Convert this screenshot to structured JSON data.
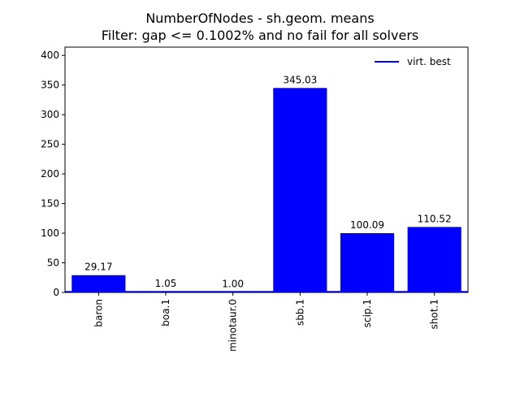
{
  "chart_data": {
    "type": "bar",
    "title": "NumberOfNodes - sh.geom. means",
    "subtitle": "Filter: gap <= 0.1002% and no fail for all solvers",
    "xlabel": "",
    "ylabel": "",
    "categories": [
      "baron",
      "boa.1",
      "minotaur.0",
      "sbb.1",
      "scip.1",
      "shot.1"
    ],
    "series": [
      {
        "values": [
          29.17,
          1.05,
          1.0,
          345.03,
          100.09,
          110.52
        ],
        "color": "#0000ff"
      }
    ],
    "data_labels": [
      "29.17",
      "1.05",
      "1.00",
      "345.03",
      "100.09",
      "110.52"
    ],
    "ylim": [
      0,
      414
    ],
    "yticks": [
      0,
      50,
      100,
      150,
      200,
      250,
      300,
      350,
      400
    ],
    "reference_line": {
      "label": "virt. best",
      "value": 1.0,
      "color": "#0000ff"
    },
    "legend": {
      "position": "top-right",
      "entries": [
        "virt. best"
      ]
    },
    "grid": false
  }
}
